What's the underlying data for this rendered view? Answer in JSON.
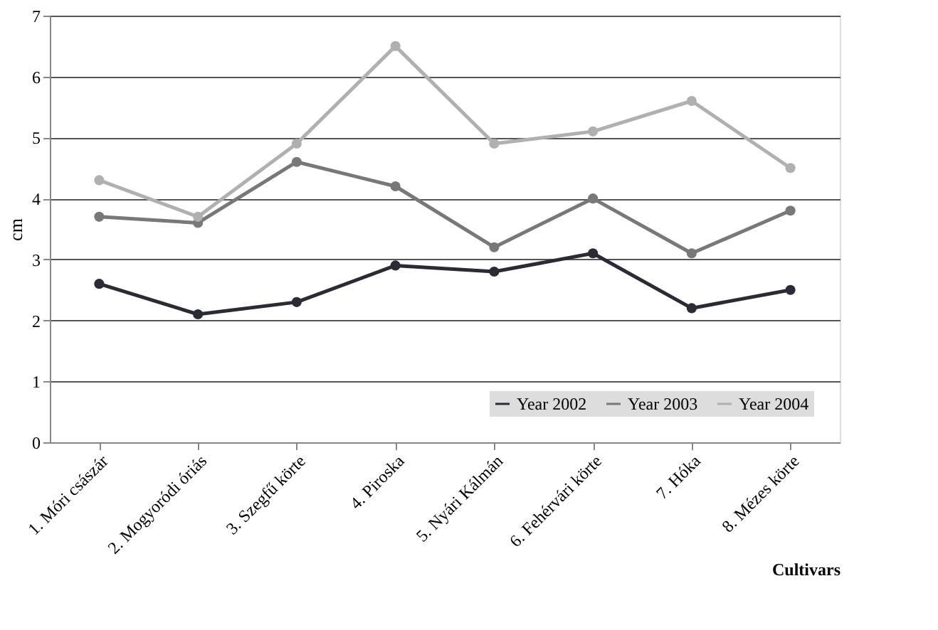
{
  "chart_data": {
    "type": "line",
    "xlabel": "Cultivars",
    "ylabel": "cm",
    "categories": [
      "1. Móri császár",
      "2. Mogyoródi óriás",
      "3. Szegfű  körte",
      "4. Piroska",
      "5. Nyári Kálmán",
      "6. Fehérvári körte",
      "7. Hóka",
      "8. Mézes körte"
    ],
    "series": [
      {
        "name": "Year 2002",
        "color": "#2b2b35",
        "values": [
          2.6,
          2.1,
          2.3,
          2.9,
          2.8,
          3.1,
          2.2,
          2.5
        ]
      },
      {
        "name": "Year 2003",
        "color": "#787878",
        "values": [
          3.7,
          3.6,
          4.6,
          4.2,
          3.2,
          4.0,
          3.1,
          3.8
        ]
      },
      {
        "name": "Year 2004",
        "color": "#b0b0b0",
        "values": [
          4.3,
          3.7,
          4.9,
          6.5,
          4.9,
          5.1,
          5.6,
          4.5
        ]
      }
    ],
    "ylim": [
      0,
      7
    ],
    "yticks": [
      0,
      1,
      2,
      3,
      4,
      5,
      6,
      7
    ],
    "grid": "y",
    "legend": "bottom right",
    "marker": "circle",
    "line_style": "solid"
  }
}
